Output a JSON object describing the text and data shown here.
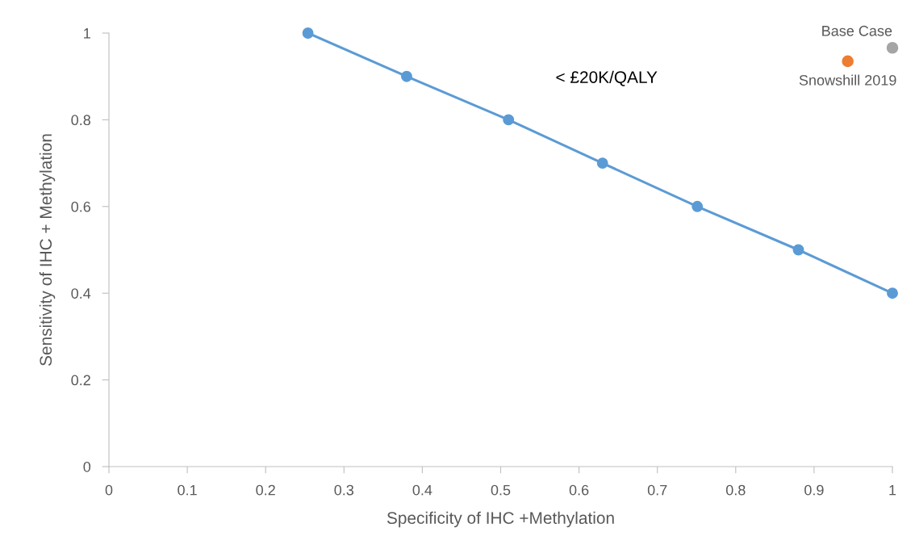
{
  "chart_data": {
    "type": "scatter",
    "xlabel": "Specificity of IHC +Methylation",
    "ylabel": "Sensitivity of IHC + Methylation",
    "annotations": [
      "< £20K/QALY"
    ],
    "series": [
      {
        "type": "line",
        "color": "#5b9bd5",
        "x": [
          0.254,
          0.38,
          0.51,
          0.63,
          0.751,
          0.88,
          1.0
        ],
        "values": [
          1.0,
          0.9,
          0.8,
          0.7,
          0.6,
          0.5,
          0.4
        ],
        "marker": "circle"
      },
      {
        "name": "Snowshill 2019",
        "color": "#ed7d31",
        "x": [
          0.943
        ],
        "values": [
          0.935
        ],
        "marker": "circle"
      },
      {
        "name": "Base Case",
        "color": "#a5a5a5",
        "x": [
          1.0
        ],
        "values": [
          0.966
        ],
        "marker": "circle"
      }
    ],
    "xlim": [
      0,
      1
    ],
    "xticks": [
      0,
      0.1,
      0.2,
      0.3,
      0.4,
      0.5,
      0.6,
      0.7,
      0.8,
      0.9,
      1
    ],
    "ylim": [
      0,
      1
    ],
    "yticks": [
      0,
      0.2,
      0.4,
      0.6,
      0.8,
      1
    ],
    "grid": false,
    "legend": false
  }
}
